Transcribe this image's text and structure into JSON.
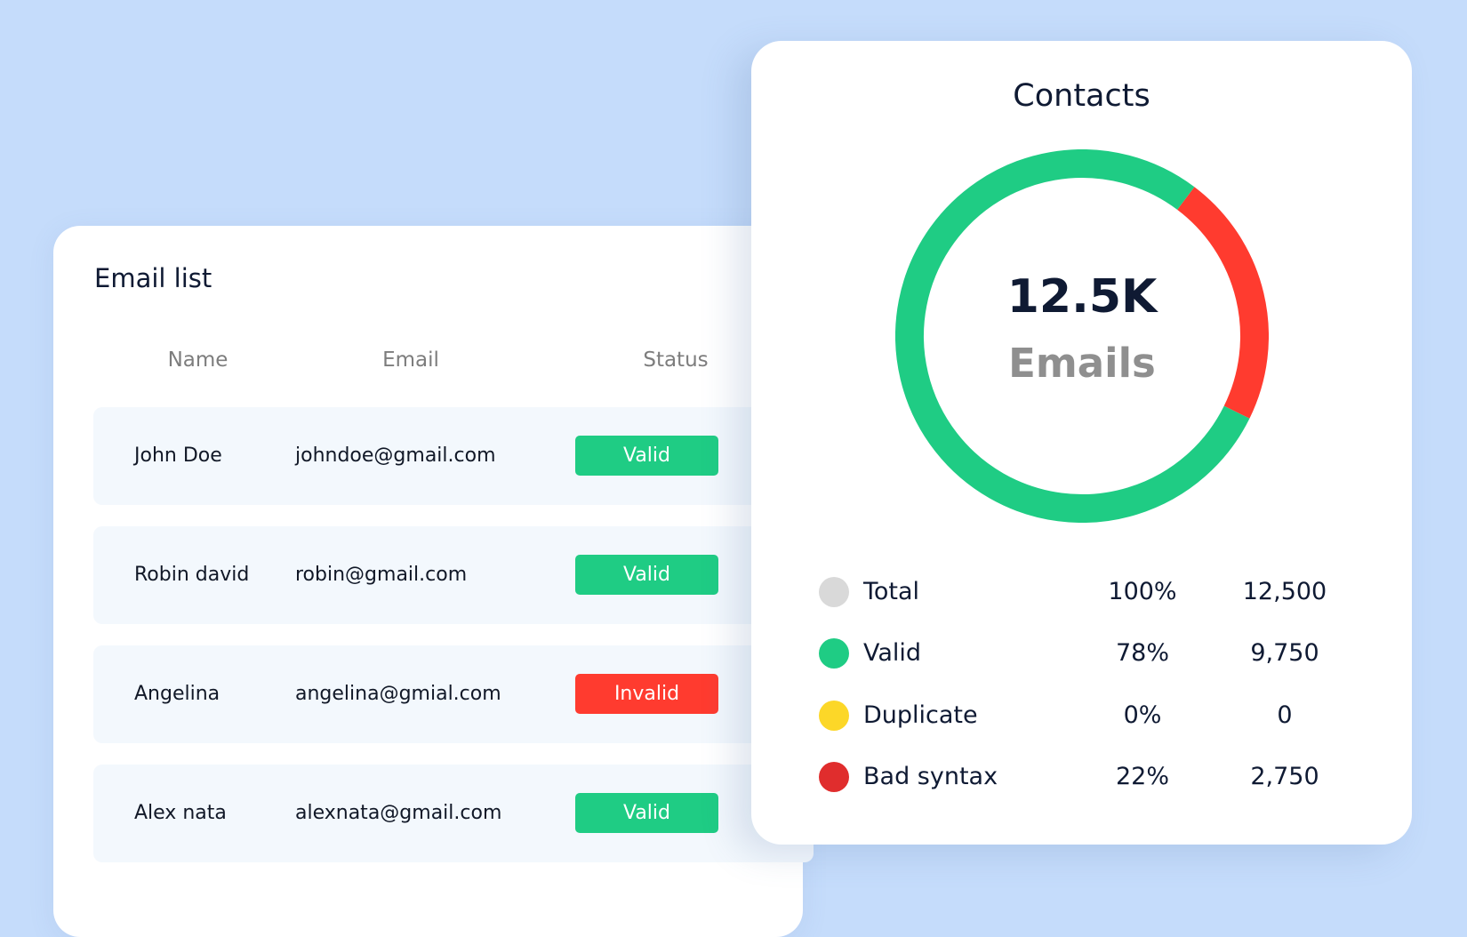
{
  "colors": {
    "background": "#c5dcfb",
    "valid": "#1fcc84",
    "invalid": "#ff3b2f",
    "total": "#d9d9d9",
    "duplicate": "#fcd728",
    "bad_syntax": "#e02d2d"
  },
  "email_list": {
    "title": "Email list",
    "columns": [
      "Name",
      "Email",
      "Status"
    ],
    "rows": [
      {
        "name": "John Doe",
        "email": "johndoe@gmail.com",
        "status": "Valid",
        "status_color": "#1fcc84"
      },
      {
        "name": "Robin david",
        "email": "robin@gmail.com",
        "status": "Valid",
        "status_color": "#1fcc84"
      },
      {
        "name": "Angelina",
        "email": "angelina@gmial.com",
        "status": "Invalid",
        "status_color": "#ff3b2f"
      },
      {
        "name": "Alex nata",
        "email": "alexnata@gmail.com",
        "status": "Valid",
        "status_color": "#1fcc84"
      }
    ]
  },
  "contacts": {
    "title": "Contacts",
    "center_value": "12.5K",
    "center_label": "Emails",
    "legend": [
      {
        "label": "Total",
        "percent": "100%",
        "count": "12,500",
        "color": "#d9d9d9"
      },
      {
        "label": "Valid",
        "percent": "78%",
        "count": "9,750",
        "color": "#1fcc84"
      },
      {
        "label": "Duplicate",
        "percent": "0%",
        "count": "0",
        "color": "#fcd728"
      },
      {
        "label": "Bad syntax",
        "percent": "22%",
        "count": "2,750",
        "color": "#e02d2d"
      }
    ]
  },
  "chart_data": {
    "type": "pie",
    "title": "Contacts",
    "categories": [
      "Valid",
      "Bad syntax"
    ],
    "values": [
      78,
      22
    ],
    "unit": "%",
    "center_text": "12.5K Emails"
  }
}
